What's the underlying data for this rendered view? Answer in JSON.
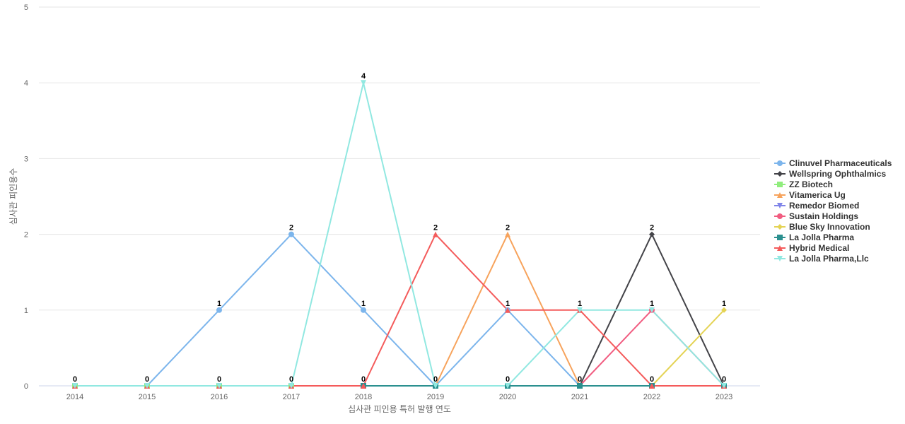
{
  "chart_data": {
    "type": "line",
    "title": "",
    "xlabel": "심사관 피인용 특허 발행 연도",
    "ylabel": "심사관 피인용수",
    "categories": [
      "2014",
      "2015",
      "2016",
      "2017",
      "2018",
      "2019",
      "2020",
      "2021",
      "2022",
      "2023"
    ],
    "ylim": [
      0,
      5
    ],
    "yticks": [
      0,
      1,
      2,
      3,
      4,
      5
    ],
    "grid": true,
    "legend_position": "right",
    "series": [
      {
        "name": "Clinuvel Pharmaceuticals",
        "color": "#7cb5ec",
        "marker": "circle",
        "values": [
          0,
          0,
          1,
          2,
          1,
          0,
          1,
          0,
          null,
          null
        ]
      },
      {
        "name": "Wellspring Ophthalmics",
        "color": "#434348",
        "marker": "diamond",
        "values": [
          null,
          null,
          null,
          null,
          null,
          null,
          null,
          0,
          2,
          0
        ]
      },
      {
        "name": "ZZ Biotech",
        "color": "#90ed7d",
        "marker": "square",
        "values": [
          0,
          0,
          0,
          0,
          null,
          null,
          null,
          null,
          null,
          null
        ]
      },
      {
        "name": "Vitamerica Ug",
        "color": "#f7a35c",
        "marker": "triangle",
        "values": [
          null,
          null,
          null,
          null,
          null,
          0,
          2,
          0,
          null,
          null
        ]
      },
      {
        "name": "Remedor Biomed",
        "color": "#8085e9",
        "marker": "triangle-down",
        "values": [
          0,
          0,
          0,
          0,
          null,
          null,
          null,
          null,
          null,
          null
        ]
      },
      {
        "name": "Sustain Holdings",
        "color": "#f15c80",
        "marker": "circle",
        "values": [
          null,
          null,
          null,
          null,
          null,
          null,
          null,
          0,
          1,
          0
        ]
      },
      {
        "name": "Blue Sky Innovation",
        "color": "#e4d354",
        "marker": "diamond",
        "values": [
          null,
          null,
          null,
          null,
          null,
          null,
          null,
          null,
          0,
          1
        ]
      },
      {
        "name": "La Jolla Pharma",
        "color": "#2b908f",
        "marker": "square",
        "values": [
          null,
          null,
          null,
          null,
          0,
          0,
          0,
          0,
          0,
          0
        ]
      },
      {
        "name": "Hybrid Medical",
        "color": "#f45b5b",
        "marker": "triangle",
        "values": [
          0,
          0,
          0,
          0,
          0,
          2,
          1,
          1,
          0,
          0
        ]
      },
      {
        "name": "La Jolla Pharma,Llc",
        "color": "#91e8e1",
        "marker": "triangle-down",
        "values": [
          0,
          0,
          0,
          0,
          4,
          0,
          0,
          1,
          1,
          0
        ]
      }
    ],
    "data_labels": [
      {
        "x": "2014",
        "text": "0"
      },
      {
        "x": "2015",
        "text": "0"
      },
      {
        "x": "2016",
        "text": "1"
      },
      {
        "x": "2016",
        "text": "0"
      },
      {
        "x": "2017",
        "text": "2"
      },
      {
        "x": "2017",
        "text": "0"
      },
      {
        "x": "2018",
        "text": "4"
      },
      {
        "x": "2018",
        "text": "1"
      },
      {
        "x": "2018",
        "text": "0"
      },
      {
        "x": "2019",
        "text": "2"
      },
      {
        "x": "2019",
        "text": "0"
      },
      {
        "x": "2020",
        "text": "2"
      },
      {
        "x": "2020",
        "text": "1"
      },
      {
        "x": "2020",
        "text": "0"
      },
      {
        "x": "2021",
        "text": "1"
      },
      {
        "x": "2021",
        "text": "0"
      },
      {
        "x": "2022",
        "text": "2"
      },
      {
        "x": "2022",
        "text": "1"
      },
      {
        "x": "2022",
        "text": "0"
      },
      {
        "x": "2023",
        "text": "1"
      },
      {
        "x": "2023",
        "text": "0"
      }
    ]
  }
}
